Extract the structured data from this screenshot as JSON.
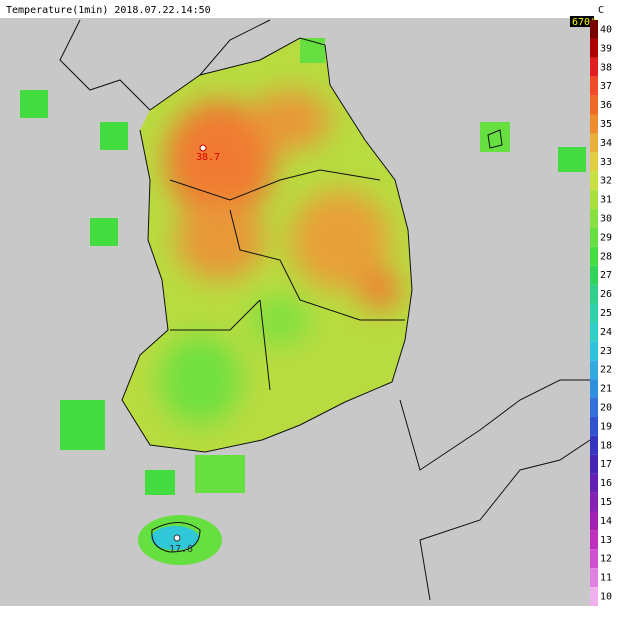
{
  "title": "Temperature(1min) 2018.07.22.14:50",
  "unit": "C",
  "station_count": "670#",
  "colorbar": {
    "ticks": [
      40,
      39,
      38,
      37,
      36,
      35,
      34,
      33,
      32,
      31,
      30,
      29,
      28,
      27,
      26,
      25,
      24,
      23,
      22,
      21,
      20,
      19,
      18,
      17,
      16,
      15,
      14,
      13,
      12,
      11,
      10
    ],
    "colors": [
      "#7a0000",
      "#b00000",
      "#e02020",
      "#f04a2a",
      "#f06a2a",
      "#f08c30",
      "#e8b038",
      "#e0d040",
      "#c8e040",
      "#a8e040",
      "#88e040",
      "#66e040",
      "#44dc40",
      "#30d458",
      "#30d088",
      "#30d0a8",
      "#30d0c8",
      "#30c4dc",
      "#30aae0",
      "#3090e0",
      "#3070dc",
      "#3052d0",
      "#3434c0",
      "#4424b4",
      "#6420b4",
      "#8420b4",
      "#a420b4",
      "#c030c0",
      "#d050d0",
      "#e080e0",
      "#f0b0f0"
    ]
  },
  "markers": [
    {
      "label": "38.7"
    },
    {
      "label": "17.6"
    }
  ]
}
